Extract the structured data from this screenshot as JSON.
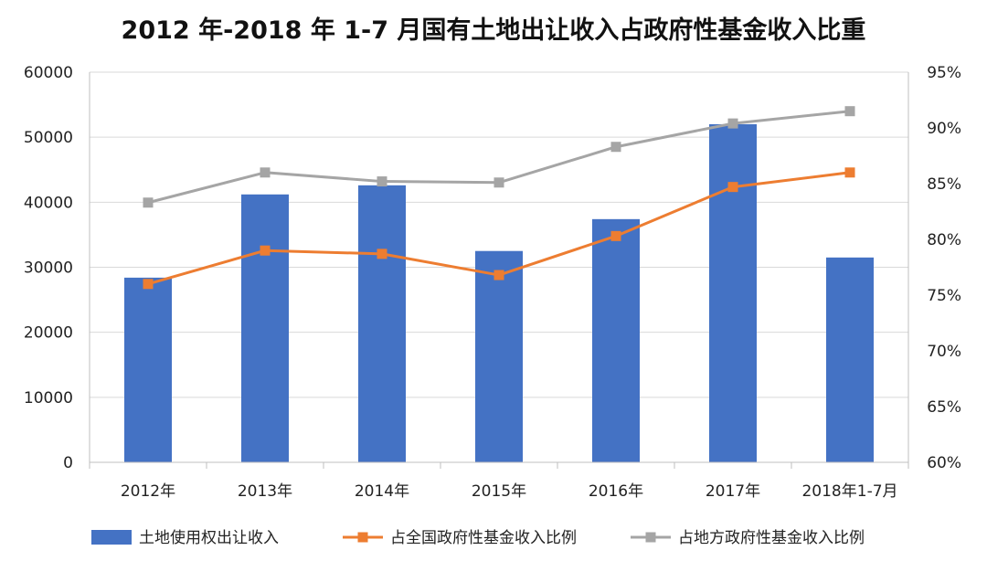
{
  "chart_data": {
    "type": "bar",
    "title": "2012 年-2018 年 1-7 月国有土地出让收入占政府性基金收入比重",
    "categories": [
      "2012年",
      "2013年",
      "2014年",
      "2015年",
      "2016年",
      "2017年",
      "2018年1-7月"
    ],
    "y_left": {
      "ylim": [
        0,
        60000
      ],
      "ticks": [
        "0",
        "10000",
        "20000",
        "30000",
        "40000",
        "50000",
        "60000"
      ]
    },
    "y_right": {
      "ylim": [
        60,
        95
      ],
      "ticks": [
        "60%",
        "65%",
        "70%",
        "75%",
        "80%",
        "85%",
        "90%",
        "95%"
      ]
    },
    "series": [
      {
        "name": "土地使用权出让收入",
        "kind": "bar",
        "axis": "left",
        "color": "#4472C4",
        "values": [
          28400,
          41200,
          42600,
          32500,
          37400,
          52000,
          31500
        ]
      },
      {
        "name": "占全国政府性基金收入比例",
        "kind": "line",
        "axis": "right",
        "color": "#ED7D31",
        "values": [
          76.0,
          79.0,
          78.7,
          76.8,
          80.3,
          84.7,
          86.0
        ]
      },
      {
        "name": "占地方政府性基金收入比例",
        "kind": "line",
        "axis": "right",
        "color": "#A5A5A5",
        "values": [
          83.3,
          86.0,
          85.2,
          85.1,
          88.3,
          90.4,
          91.5
        ]
      }
    ],
    "grid": true,
    "legend_position": "bottom"
  }
}
